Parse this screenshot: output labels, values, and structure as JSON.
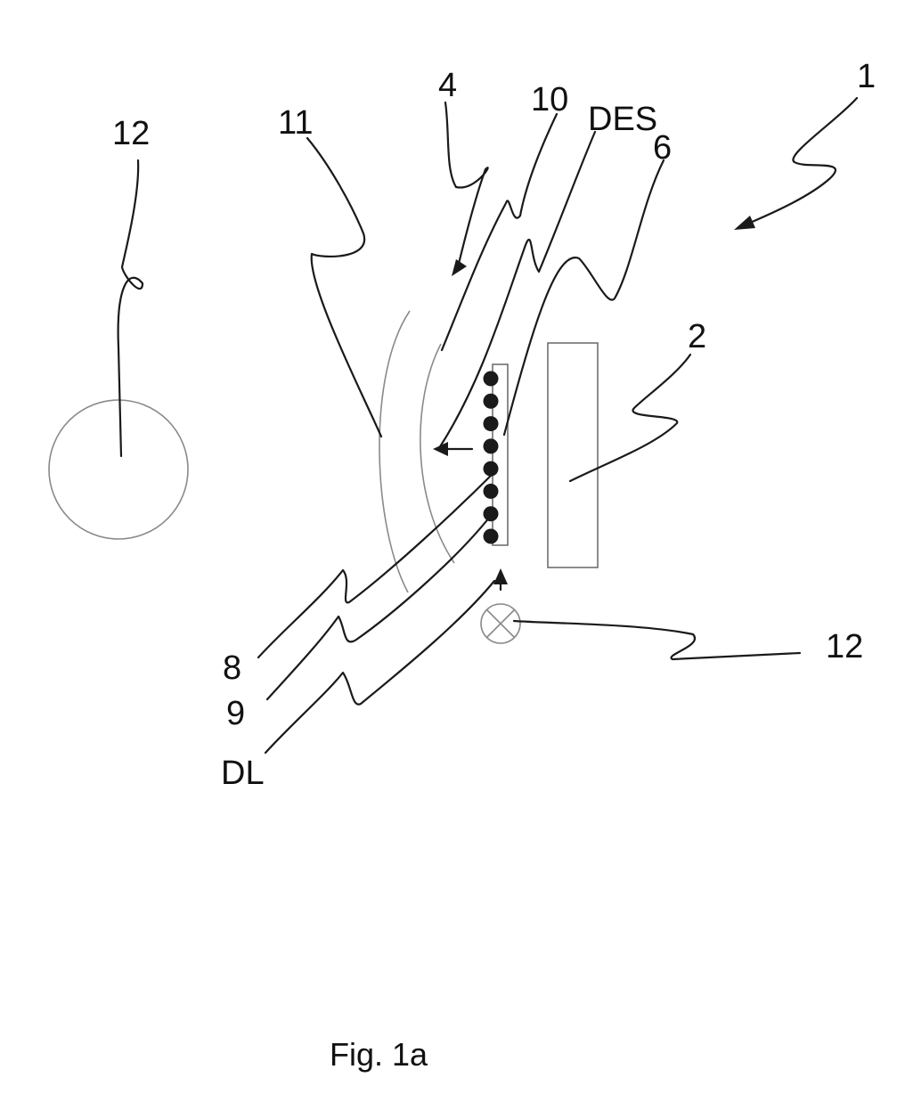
{
  "figure": {
    "caption": "Fig. 1a",
    "labels": {
      "ref_1": "1",
      "ref_12_left": "12",
      "ref_11": "11",
      "ref_4": "4",
      "ref_10": "10",
      "ref_des": "DES",
      "ref_6": "6",
      "ref_2": "2",
      "ref_12_right": "12",
      "ref_8": "8",
      "ref_9": "9",
      "ref_dl": "DL"
    },
    "led_strip": {
      "led_count": 8
    }
  }
}
